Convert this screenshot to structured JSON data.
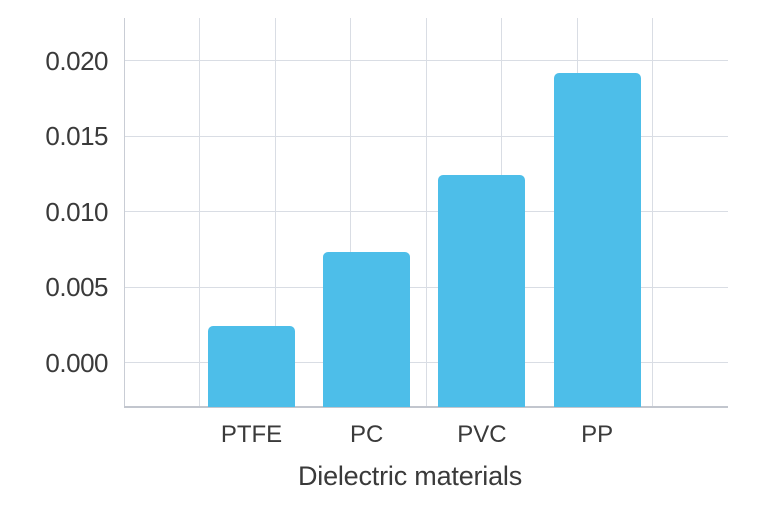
{
  "chart_data": {
    "type": "bar",
    "title": "",
    "xlabel": "Dielectric materials",
    "ylabel": "",
    "categories": [
      "PTFE",
      "PC",
      "PVC",
      "PP"
    ],
    "values": [
      0.0024,
      0.0073,
      0.0124,
      0.0192
    ],
    "yticks": [
      0.0,
      0.005,
      0.01,
      0.015,
      0.02
    ],
    "ytick_labels": [
      "0.000",
      "0.005",
      "0.010",
      "0.015",
      "0.020"
    ],
    "ylim": [
      -0.0029,
      0.0228
    ],
    "grid": true,
    "legend": false,
    "series_name": "",
    "colors": {
      "bar": "#4DBEE9",
      "gridline": "#D9DDE4",
      "axis_line": "#C9CDD5",
      "bottom_axis_line": "#C2C6CE",
      "text": "#3A3A3A",
      "background": "#FFFFFF"
    }
  }
}
